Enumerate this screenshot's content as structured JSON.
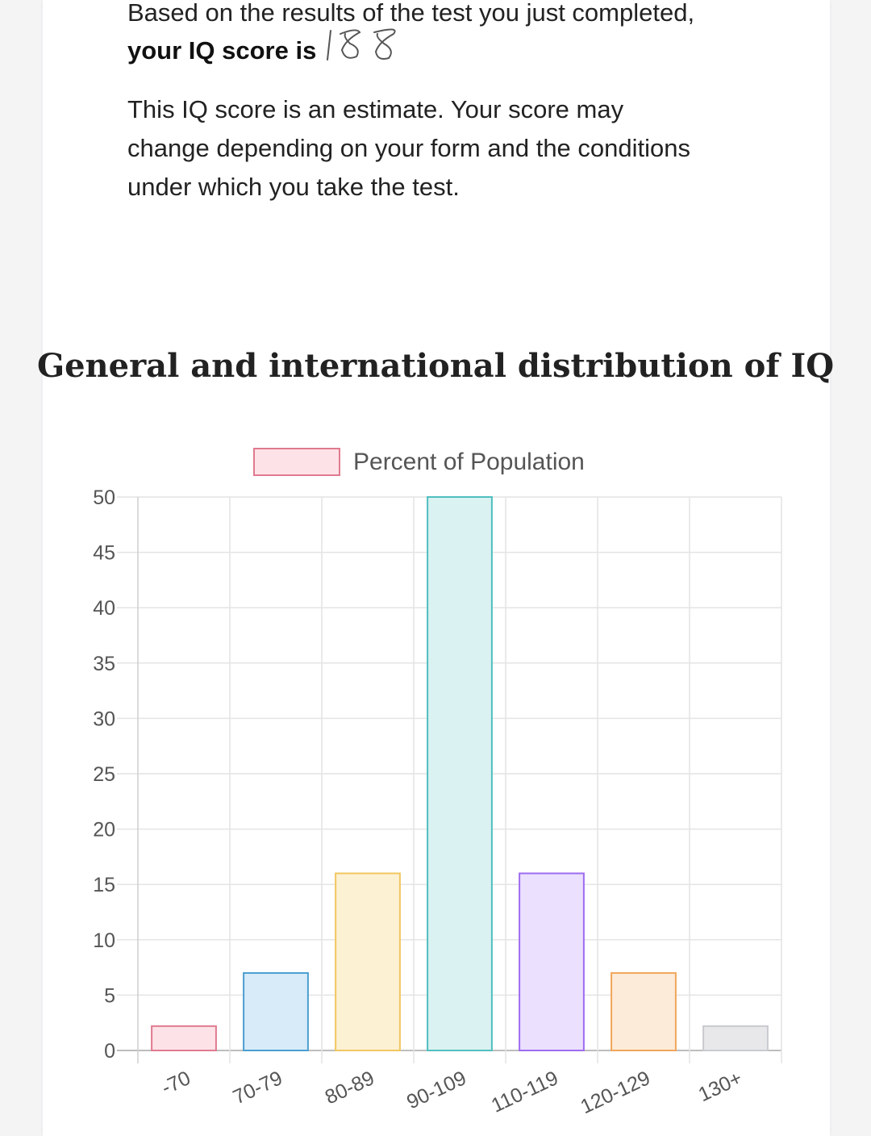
{
  "result": {
    "prefix": "Based on the results of the test you just completed, ",
    "bold": "your IQ score is",
    "handwritten_score": "188"
  },
  "note": "This IQ score is an estimate. Your score may change depending on your form and the conditions under which you take the test.",
  "section_title": "General and international distribution of IQ",
  "colors": {
    "borders": [
      "#e07a8f",
      "#4a9fd0",
      "#f0c761",
      "#4fbfbf",
      "#9e6cf0",
      "#f0a65a",
      "#c9cacf"
    ],
    "fills": [
      "#fde3e8",
      "#d8ebf8",
      "#fdf1d3",
      "#daf2f1",
      "#ebe0fd",
      "#fdebd9",
      "#e8e8ea"
    ]
  },
  "chart_data": {
    "type": "bar",
    "categories": [
      "-70",
      "70-79",
      "80-89",
      "90-109",
      "110-119",
      "120-129",
      "130+"
    ],
    "series": [
      {
        "name": "Percent of Population",
        "values": [
          2.2,
          7,
          16,
          50,
          16,
          7,
          2.2
        ]
      }
    ],
    "ylim": [
      0,
      50
    ],
    "yticks": [
      "0",
      "5",
      "10",
      "15",
      "20",
      "25",
      "30",
      "35",
      "40",
      "45",
      "50"
    ],
    "grid": true,
    "legend": "top"
  }
}
